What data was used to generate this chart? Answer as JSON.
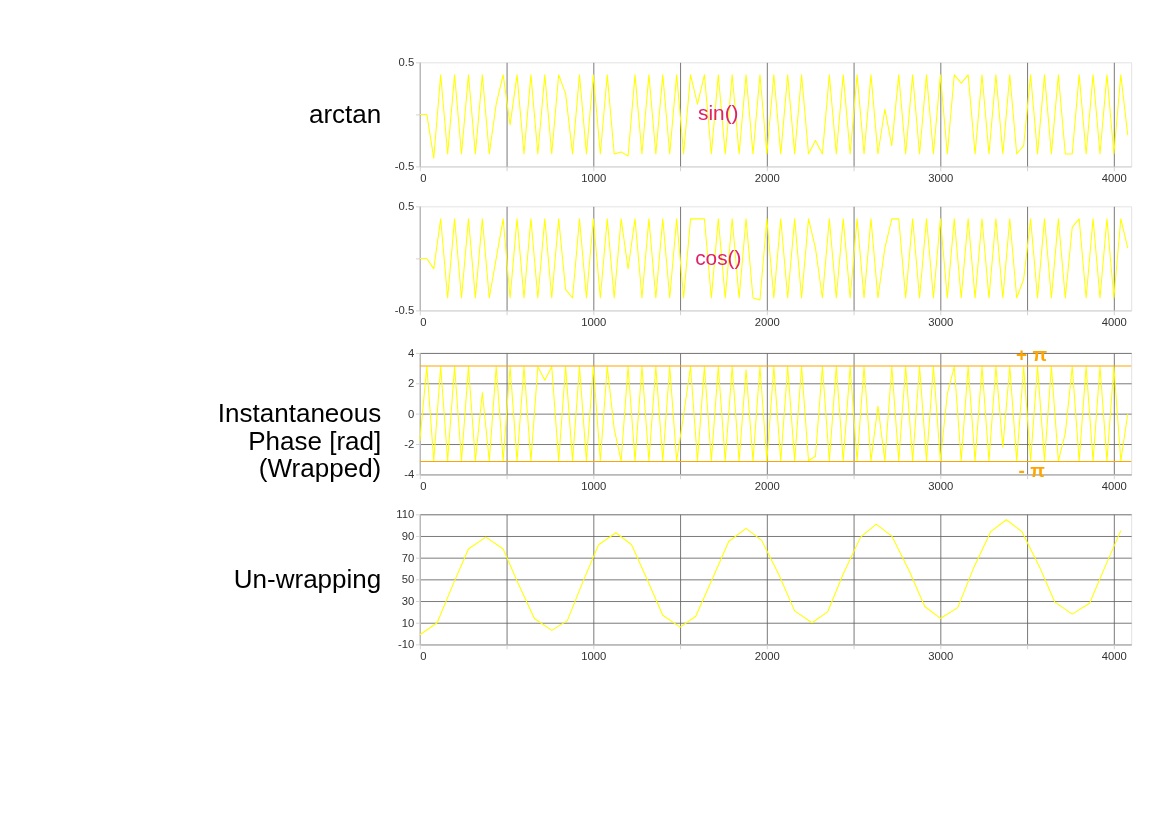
{
  "chart_data": [
    {
      "type": "line",
      "ylabel": "arctan",
      "xlim": [
        0,
        4100
      ],
      "ylim": [
        -0.5,
        0.5
      ],
      "xticks": [
        0,
        {
          "value": 500,
          "label": null
        },
        1000,
        {
          "value": 1500,
          "label": null
        },
        2000,
        {
          "value": 2500,
          "label": null
        },
        3000,
        {
          "value": 3500,
          "label": null
        },
        4000
      ],
      "yticks": [
        -0.5,
        {
          "value": 0,
          "label": null
        },
        0.5
      ],
      "grid": "x",
      "annotations": [
        {
          "text": "sin()",
          "x": 1720,
          "y": 0
        }
      ],
      "series": [
        {
          "color": "#ffff00",
          "x": [
            0,
            40,
            80,
            120,
            160,
            200,
            240,
            280,
            320,
            360,
            400,
            440,
            480,
            520,
            560,
            600,
            640,
            680,
            720,
            760,
            800,
            840,
            880,
            920,
            960,
            1000,
            1040,
            1080,
            1120,
            1160,
            1200,
            1240,
            1280,
            1320,
            1360,
            1400,
            1440,
            1480,
            1520,
            1560,
            1600,
            1640,
            1680,
            1720,
            1760,
            1800,
            1840,
            1880,
            1920,
            1960,
            2000,
            2040,
            2080,
            2120,
            2160,
            2200,
            2240,
            2280,
            2320,
            2360,
            2400,
            2440,
            2480,
            2520,
            2560,
            2600,
            2640,
            2680,
            2720,
            2760,
            2800,
            2840,
            2880,
            2920,
            2960,
            3000,
            3040,
            3080,
            3120,
            3160,
            3200,
            3240,
            3280,
            3320,
            3360,
            3400,
            3440,
            3480,
            3520,
            3560,
            3600,
            3640,
            3680,
            3720,
            3760,
            3800,
            3840,
            3880,
            3920,
            3960,
            4000,
            4040,
            4080
          ],
          "values": [
            0,
            0,
            -0.42,
            0.38,
            -0.38,
            0.38,
            -0.38,
            0.38,
            -0.38,
            0.38,
            -0.38,
            0.1,
            0.38,
            -0.1,
            0.38,
            -0.38,
            0.38,
            -0.38,
            0.38,
            -0.38,
            0.38,
            0.2,
            -0.38,
            0.38,
            -0.38,
            0.38,
            -0.38,
            0.38,
            -0.38,
            -0.36,
            -0.4,
            0.38,
            -0.38,
            0.38,
            -0.38,
            0.38,
            -0.38,
            0.38,
            -0.38,
            0.38,
            0.1,
            0.38,
            -0.38,
            0.38,
            -0.38,
            0.38,
            -0.38,
            0.38,
            -0.38,
            0.38,
            -0.38,
            0.38,
            -0.38,
            0.38,
            -0.38,
            0.38,
            -0.38,
            -0.25,
            -0.38,
            0.38,
            -0.38,
            0.38,
            -0.38,
            0.38,
            -0.38,
            0.38,
            -0.38,
            0.05,
            -0.3,
            0.38,
            -0.38,
            0.38,
            -0.38,
            0.38,
            -0.38,
            0.38,
            -0.38,
            0.38,
            0.3,
            0.38,
            -0.38,
            0.38,
            -0.38,
            0.38,
            -0.38,
            0.38,
            -0.38,
            -0.3,
            0.38,
            -0.38,
            0.38,
            -0.38,
            0.38,
            -0.38,
            -0.38,
            0.38,
            -0.38,
            0.38,
            -0.38,
            0.38,
            -0.38,
            0.38,
            -0.2
          ]
        }
      ]
    },
    {
      "type": "line",
      "xlim": [
        0,
        4100
      ],
      "ylim": [
        -0.5,
        0.5
      ],
      "xticks": [
        0,
        {
          "value": 500,
          "label": null
        },
        1000,
        {
          "value": 1500,
          "label": null
        },
        2000,
        {
          "value": 2500,
          "label": null
        },
        3000,
        {
          "value": 3500,
          "label": null
        },
        4000
      ],
      "yticks": [
        -0.5,
        {
          "value": 0,
          "label": null
        },
        0.5
      ],
      "grid": "x",
      "annotations": [
        {
          "text": "cos()",
          "x": 1720,
          "y": 0
        }
      ],
      "series": [
        {
          "color": "#ffff00",
          "x": [
            0,
            40,
            80,
            120,
            160,
            200,
            240,
            280,
            320,
            360,
            400,
            440,
            480,
            520,
            560,
            600,
            640,
            680,
            720,
            760,
            800,
            840,
            880,
            920,
            960,
            1000,
            1040,
            1080,
            1120,
            1160,
            1200,
            1240,
            1280,
            1320,
            1360,
            1400,
            1440,
            1480,
            1520,
            1560,
            1600,
            1640,
            1680,
            1720,
            1760,
            1800,
            1840,
            1880,
            1920,
            1960,
            2000,
            2040,
            2080,
            2120,
            2160,
            2200,
            2240,
            2280,
            2320,
            2360,
            2400,
            2440,
            2480,
            2520,
            2560,
            2600,
            2640,
            2680,
            2720,
            2760,
            2800,
            2840,
            2880,
            2920,
            2960,
            3000,
            3040,
            3080,
            3120,
            3160,
            3200,
            3240,
            3280,
            3320,
            3360,
            3400,
            3440,
            3480,
            3520,
            3560,
            3600,
            3640,
            3680,
            3720,
            3760,
            3800,
            3840,
            3880,
            3920,
            3960,
            4000,
            4040,
            4080
          ],
          "values": [
            0,
            0,
            -0.1,
            0.38,
            -0.38,
            0.38,
            -0.38,
            0.38,
            -0.38,
            0.38,
            -0.38,
            0.0,
            0.38,
            -0.38,
            0.38,
            -0.38,
            0.38,
            -0.38,
            0.38,
            -0.38,
            0.38,
            -0.3,
            -0.38,
            0.38,
            -0.38,
            0.38,
            -0.38,
            0.38,
            -0.38,
            0.38,
            -0.1,
            0.38,
            -0.38,
            0.38,
            -0.38,
            0.38,
            -0.38,
            0.38,
            -0.38,
            0.38,
            0.38,
            0.38,
            -0.38,
            0.38,
            -0.38,
            0.38,
            -0.38,
            0.38,
            -0.38,
            -0.4,
            0.38,
            -0.38,
            0.38,
            -0.38,
            0.38,
            -0.38,
            0.38,
            0.1,
            -0.38,
            0.38,
            -0.38,
            0.38,
            -0.38,
            0.38,
            -0.38,
            0.38,
            -0.38,
            0.1,
            0.38,
            0.38,
            -0.38,
            0.38,
            -0.38,
            0.38,
            -0.38,
            0.38,
            -0.38,
            0.38,
            -0.38,
            0.38,
            -0.38,
            0.38,
            -0.38,
            0.38,
            -0.38,
            0.38,
            -0.38,
            -0.2,
            0.38,
            -0.38,
            0.38,
            -0.38,
            0.38,
            -0.38,
            0.3,
            0.38,
            -0.38,
            0.38,
            -0.38,
            0.38,
            -0.38,
            0.38,
            0.1
          ]
        }
      ]
    },
    {
      "type": "line",
      "ylabel": "Instantaneous Phase [rad] (Wrapped)",
      "xlim": [
        0,
        4100
      ],
      "ylim": [
        -4,
        4
      ],
      "xticks": [
        0,
        {
          "value": 500,
          "label": null
        },
        1000,
        {
          "value": 1500,
          "label": null
        },
        2000,
        {
          "value": 2500,
          "label": null
        },
        3000,
        {
          "value": 3500,
          "label": null
        },
        4000
      ],
      "yticks": [
        -4,
        -2,
        0,
        2,
        4
      ],
      "grid": true,
      "ref_lines": [
        {
          "axis": "y",
          "value": 3.1416,
          "label": "+ π",
          "color": "#ffa500"
        },
        {
          "axis": "y",
          "value": -3.1416,
          "label": "- π",
          "color": "#ffa500"
        }
      ],
      "series": [
        {
          "color": "#ffff00",
          "x": [
            0,
            40,
            80,
            120,
            160,
            200,
            240,
            280,
            320,
            360,
            400,
            440,
            480,
            520,
            560,
            600,
            640,
            680,
            720,
            760,
            800,
            840,
            880,
            920,
            960,
            1000,
            1040,
            1080,
            1120,
            1160,
            1200,
            1240,
            1280,
            1320,
            1360,
            1400,
            1440,
            1480,
            1520,
            1560,
            1600,
            1640,
            1680,
            1720,
            1760,
            1800,
            1840,
            1880,
            1920,
            1960,
            2000,
            2040,
            2080,
            2120,
            2160,
            2200,
            2240,
            2280,
            2320,
            2360,
            2400,
            2440,
            2480,
            2520,
            2560,
            2600,
            2640,
            2680,
            2720,
            2760,
            2800,
            2840,
            2880,
            2920,
            2960,
            3000,
            3040,
            3080,
            3120,
            3160,
            3200,
            3240,
            3280,
            3320,
            3360,
            3400,
            3440,
            3480,
            3520,
            3560,
            3600,
            3640,
            3680,
            3720,
            3760,
            3800,
            3840,
            3880,
            3920,
            3960,
            4000,
            4040,
            4080
          ],
          "values": [
            -1.8,
            3.1,
            -3.1,
            3.1,
            -3.1,
            3.1,
            -3.1,
            3.1,
            -3.1,
            1.4,
            -3.1,
            3.1,
            -3.1,
            3.1,
            -3.1,
            3.1,
            -3.1,
            3.1,
            2.2,
            3.1,
            -3.1,
            3.1,
            -3.1,
            3.1,
            -3.1,
            3.1,
            -3.1,
            3.1,
            -1.0,
            -3.1,
            3.1,
            -3.1,
            3.1,
            -3.1,
            3.1,
            -3.1,
            3.1,
            -3.1,
            -0.1,
            3.1,
            -3.1,
            3.1,
            -3.1,
            3.1,
            -3.1,
            3.1,
            -3.1,
            2.9,
            -3.1,
            3.1,
            -3.1,
            3.1,
            -3.1,
            3.1,
            -3.1,
            3.1,
            -3.1,
            -2.8,
            3.1,
            -3.1,
            3.1,
            -3.1,
            3.1,
            -3.1,
            3.1,
            -3.1,
            0.5,
            -3.1,
            3.1,
            -3.1,
            3.1,
            -3.1,
            3.1,
            -3.1,
            3.1,
            -3.1,
            1.3,
            3.1,
            -3.1,
            3.1,
            -3.1,
            3.1,
            -3.1,
            3.1,
            -2.2,
            3.1,
            -3.1,
            3.1,
            -3.1,
            3.1,
            -3.1,
            3.1,
            -3.1,
            -1.3,
            3.1,
            -3.1,
            3.1,
            -3.1,
            3.1,
            -3.1,
            3.1,
            -3.1,
            0.0
          ]
        }
      ]
    },
    {
      "type": "line",
      "ylabel": "Un-wrapping",
      "xlim": [
        0,
        4100
      ],
      "ylim": [
        -10,
        110
      ],
      "xticks": [
        0,
        {
          "value": 500,
          "label": null
        },
        1000,
        {
          "value": 1500,
          "label": null
        },
        2000,
        {
          "value": 2500,
          "label": null
        },
        3000,
        {
          "value": 3500,
          "label": null
        },
        4000
      ],
      "yticks": [
        -10,
        10,
        30,
        50,
        70,
        90,
        110
      ],
      "grid": true,
      "series": [
        {
          "color": "#ffff00",
          "x": [
            0,
            100,
            190,
            280,
            380,
            480,
            570,
            660,
            760,
            850,
            940,
            1030,
            1130,
            1220,
            1310,
            1400,
            1500,
            1590,
            1690,
            1780,
            1880,
            1970,
            2070,
            2160,
            2260,
            2350,
            2440,
            2540,
            2630,
            2720,
            2820,
            2910,
            3000,
            3100,
            3190,
            3290,
            3380,
            3470,
            3570,
            3660,
            3760,
            3860,
            3950,
            4040
          ],
          "values": [
            -1,
            10,
            45,
            78,
            89,
            78,
            45,
            14,
            3,
            12,
            48,
            82,
            93,
            82,
            50,
            17,
            6,
            16,
            52,
            85,
            97,
            86,
            54,
            21,
            10,
            20,
            55,
            89,
            101,
            90,
            58,
            25,
            14,
            24,
            60,
            94,
            105,
            94,
            62,
            29,
            18,
            28,
            62,
            95
          ]
        }
      ]
    }
  ]
}
